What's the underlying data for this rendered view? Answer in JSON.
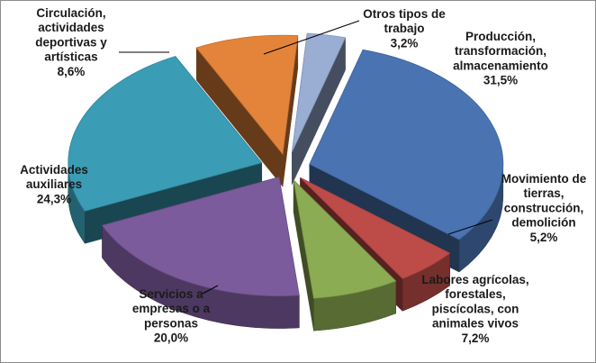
{
  "chart_data": {
    "type": "pie",
    "exploded": true,
    "three_d": true,
    "legend": "none",
    "categories": [
      "Producción, transformación, almacenamiento",
      "Movimiento de tierras, construcción, demolición",
      "Labores agrícolas, forestales, piscícolas, con animales vivos",
      "Servicios a empresas o a personas",
      "Actividades auxiliares",
      "Circulación, actividades deportivas y artísticas",
      "Otros tipos de trabajo"
    ],
    "values": [
      31.5,
      5.2,
      7.2,
      20.0,
      24.3,
      8.6,
      3.2
    ],
    "value_labels": [
      "31,5%",
      "5,2%",
      "7,2%",
      "20,0%",
      "24,3%",
      "8,6%",
      "3,2%"
    ],
    "label_lines": [
      [
        "Producción,",
        "transformación,",
        "almacenamiento",
        "31,5%"
      ],
      [
        "Movimiento de",
        "tierras,",
        "construcción,",
        "demolición",
        "5,2%"
      ],
      [
        "Labores agrícolas,",
        "forestales,",
        "piscícolas, con",
        "animales vivos",
        "7,2%"
      ],
      [
        "Servicios a",
        "empresas o a",
        "personas",
        "20,0%"
      ],
      [
        "Actividades",
        "auxiliares",
        "24,3%"
      ],
      [
        "Circulación,",
        "actividades",
        "deportivas y",
        "artísticas",
        "8,6%"
      ],
      [
        "Otros tipos de",
        "trabajo",
        "3,2%"
      ]
    ],
    "colors": [
      "#4a73b2",
      "#bd4b48",
      "#8cac53",
      "#7b5b9c",
      "#3a9cb5",
      "#e3843a",
      "#9aaed4"
    ]
  }
}
